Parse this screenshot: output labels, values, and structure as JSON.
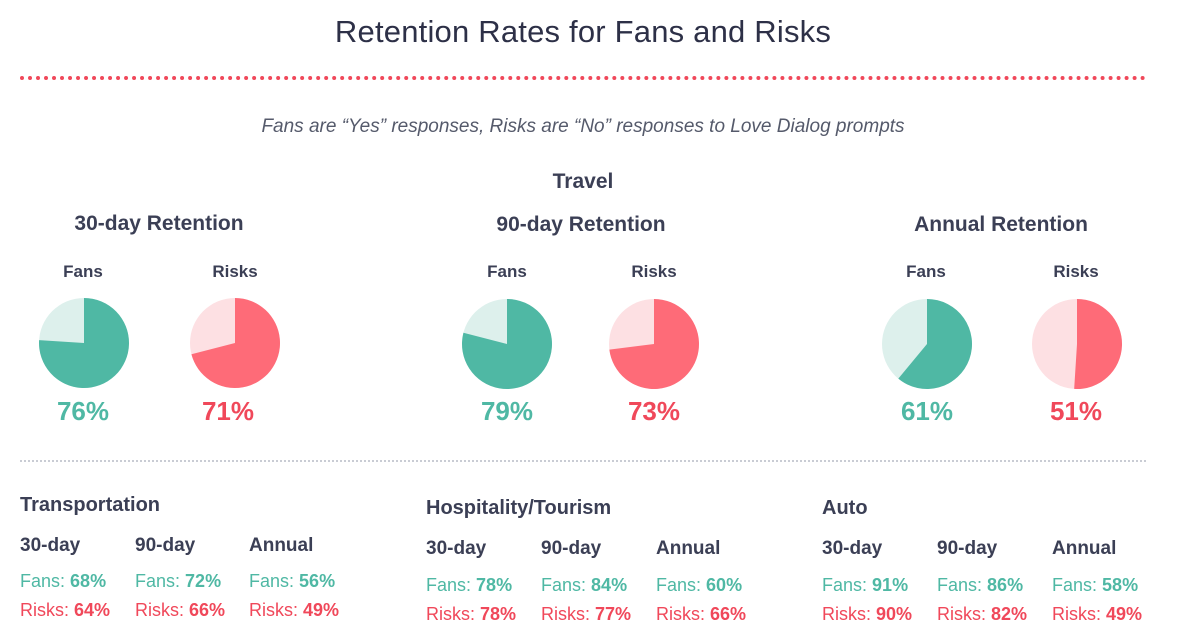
{
  "title": "Retention Rates for Fans and Risks",
  "subtitle": "Fans are “Yes” responses, Risks are “No” responses to Love Dialog prompts",
  "colors": {
    "fans": "#4fb8a4",
    "fans_light": "#ddf0ec",
    "risks": "#f0485a",
    "risks_pie": "#fe6b78",
    "risks_light": "#fde0e3",
    "text": "#2d3047"
  },
  "chart_data": {
    "type": "pie",
    "section": "Travel",
    "groups": [
      {
        "title": "30-day Retention",
        "fans_label": "Fans",
        "risks_label": "Risks",
        "fans": 76,
        "risks": 71,
        "fans_text": "76%",
        "risks_text": "71%"
      },
      {
        "title": "90-day Retention",
        "fans_label": "Fans",
        "risks_label": "Risks",
        "fans": 79,
        "risks": 73,
        "fans_text": "79%",
        "risks_text": "73%"
      },
      {
        "title": "Annual Retention",
        "fans_label": "Fans",
        "risks_label": "Risks",
        "fans": 61,
        "risks": 51,
        "fans_text": "61%",
        "risks_text": "51%"
      }
    ]
  },
  "industries": [
    {
      "name": "Transportation",
      "columns": [
        {
          "head": "30-day",
          "fans_label": "Fans:",
          "fans": "68%",
          "risks_label": "Risks:",
          "risks": "64%"
        },
        {
          "head": "90-day",
          "fans_label": "Fans:",
          "fans": "72%",
          "risks_label": "Risks:",
          "risks": "66%"
        },
        {
          "head": "Annual",
          "fans_label": "Fans:",
          "fans": "56%",
          "risks_label": "Risks:",
          "risks": "49%"
        }
      ]
    },
    {
      "name": "Hospitality/Tourism",
      "columns": [
        {
          "head": "30-day",
          "fans_label": "Fans:",
          "fans": "78%",
          "risks_label": "Risks:",
          "risks": "78%"
        },
        {
          "head": "90-day",
          "fans_label": "Fans:",
          "fans": "84%",
          "risks_label": "Risks:",
          "risks": "77%"
        },
        {
          "head": "Annual",
          "fans_label": "Fans:",
          "fans": "60%",
          "risks_label": "Risks:",
          "risks": "66%"
        }
      ]
    },
    {
      "name": "Auto",
      "columns": [
        {
          "head": "30-day",
          "fans_label": "Fans:",
          "fans": "91%",
          "risks_label": "Risks:",
          "risks": "90%"
        },
        {
          "head": "90-day",
          "fans_label": "Fans:",
          "fans": "86%",
          "risks_label": "Risks:",
          "risks": "82%"
        },
        {
          "head": "Annual",
          "fans_label": "Fans:",
          "fans": "58%",
          "risks_label": "Risks:",
          "risks": "49%"
        }
      ]
    }
  ]
}
